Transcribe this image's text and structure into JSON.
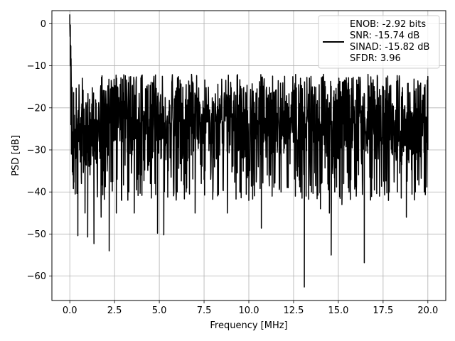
{
  "chart_data": {
    "type": "line",
    "xlabel": "Frequency [MHz]",
    "ylabel": "PSD [dB]",
    "xlim": [
      -1.0,
      21.0
    ],
    "ylim": [
      -65.8,
      3.1
    ],
    "xticks": [
      0.0,
      2.5,
      5.0,
      7.5,
      10.0,
      12.5,
      15.0,
      17.5,
      20.0
    ],
    "xtick_labels": [
      "0.0",
      "2.5",
      "5.0",
      "7.5",
      "10.0",
      "12.5",
      "15.0",
      "17.5",
      "20.0"
    ],
    "yticks": [
      0,
      -10,
      -20,
      -30,
      -40,
      -50,
      -60
    ],
    "ytick_labels": [
      "0",
      "−10",
      "−20",
      "−30",
      "−40",
      "−50",
      "−60"
    ],
    "grid": true,
    "legend_position": "top-right",
    "series": [
      {
        "name": "ENOB: -2.92 bits\nSNR: -15.74 dB\nSINAD: -15.82 dB\nSFDR: 3.96",
        "legend_lines": [
          "ENOB: -2.92 bits",
          "SNR: -15.74 dB",
          "SINAD: -15.82 dB",
          "SFDR: 3.96"
        ],
        "color": "#000000",
        "x_range": [
          0.0,
          20.0
        ],
        "points": [
          [
            0.0,
            0.0
          ],
          [
            0.03,
            -10.0
          ],
          [
            0.06,
            -24.0
          ],
          [
            0.09,
            -31.0
          ],
          [
            0.12,
            -18.0
          ],
          [
            0.2,
            -35.0
          ],
          [
            0.3,
            -40.5
          ],
          [
            0.35,
            -22.0
          ],
          [
            0.45,
            -50.4
          ],
          [
            0.55,
            -30.0
          ],
          [
            0.65,
            -38.0
          ],
          [
            0.85,
            -45.0
          ],
          [
            1.0,
            -50.7
          ],
          [
            1.15,
            -32.0
          ],
          [
            1.35,
            -52.3
          ],
          [
            1.5,
            -30.0
          ],
          [
            1.75,
            -46.0
          ],
          [
            1.9,
            -35.0
          ],
          [
            2.2,
            -54.0
          ],
          [
            2.4,
            -30.0
          ],
          [
            2.6,
            -45.0
          ],
          [
            2.9,
            -42.0
          ],
          [
            3.3,
            -40.0
          ],
          [
            3.6,
            -45.0
          ],
          [
            4.0,
            -36.0
          ],
          [
            4.5,
            -38.0
          ],
          [
            4.9,
            -49.8
          ],
          [
            5.1,
            -32.0
          ],
          [
            5.25,
            -50.2
          ],
          [
            5.5,
            -35.0
          ],
          [
            6.0,
            -40.0
          ],
          [
            6.5,
            -40.0
          ],
          [
            7.0,
            -45.0
          ],
          [
            7.5,
            -37.0
          ],
          [
            8.0,
            -40.0
          ],
          [
            8.8,
            -45.0
          ],
          [
            9.5,
            -40.0
          ],
          [
            10.0,
            -42.0
          ],
          [
            10.7,
            -48.6
          ],
          [
            11.3,
            -41.0
          ],
          [
            11.8,
            -40.0
          ],
          [
            12.2,
            -39.0
          ],
          [
            12.6,
            -41.0
          ],
          [
            13.1,
            -62.6
          ],
          [
            13.5,
            -40.0
          ],
          [
            14.0,
            -44.0
          ],
          [
            14.5,
            -45.0
          ],
          [
            14.6,
            -55.0
          ],
          [
            14.8,
            -40.0
          ],
          [
            15.2,
            -43.0
          ],
          [
            15.6,
            -40.0
          ],
          [
            16.0,
            -41.0
          ],
          [
            16.45,
            -56.8
          ],
          [
            16.8,
            -40.0
          ],
          [
            17.3,
            -41.0
          ],
          [
            17.8,
            -42.0
          ],
          [
            18.3,
            -40.0
          ],
          [
            18.8,
            -46.0
          ],
          [
            19.3,
            -40.0
          ],
          [
            19.8,
            -40.0
          ],
          [
            20.0,
            -30.0
          ]
        ]
      }
    ]
  }
}
